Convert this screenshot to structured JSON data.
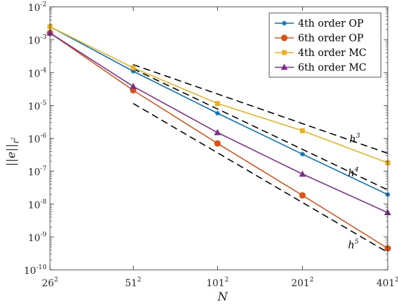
{
  "chart_data": {
    "type": "line",
    "xscale": "log",
    "yscale": "log",
    "xlabel": "N",
    "ylabel": "||e||",
    "ylabel_sub": "ℓ",
    "ylabel_sub_sup": "2",
    "ylim": [
      1e-10,
      0.01
    ],
    "x_categories": [
      26,
      51,
      101,
      201,
      401
    ],
    "x_tick_labels": [
      {
        "base": "26",
        "exp": "2"
      },
      {
        "base": "51",
        "exp": "2"
      },
      {
        "base": "101",
        "exp": "2"
      },
      {
        "base": "201",
        "exp": "2"
      },
      {
        "base": "401",
        "exp": "2"
      }
    ],
    "y_tick_labels": [
      {
        "value": 0.01,
        "base": "10",
        "exp": "-2"
      },
      {
        "value": 0.001,
        "base": "10",
        "exp": "-3"
      },
      {
        "value": 0.0001,
        "base": "10",
        "exp": "-4"
      },
      {
        "value": 1e-05,
        "base": "10",
        "exp": "-5"
      },
      {
        "value": 1e-06,
        "base": "10",
        "exp": "-6"
      },
      {
        "value": 1e-07,
        "base": "10",
        "exp": "-7"
      },
      {
        "value": 1e-08,
        "base": "10",
        "exp": "-8"
      },
      {
        "value": 1e-09,
        "base": "10",
        "exp": "-9"
      },
      {
        "value": 1e-10,
        "base": "10",
        "exp": "-10"
      }
    ],
    "grid": false,
    "legend_position": "top-right",
    "series": [
      {
        "name": "4th order OP",
        "color": "#0072BD",
        "marker": "asterisk",
        "x": [
          26,
          51,
          101,
          201,
          401
        ],
        "values": [
          0.0025,
          0.00011,
          5.8e-06,
          3.3e-07,
          1.95e-08
        ]
      },
      {
        "name": "6th order OP",
        "color": "#D95319",
        "marker": "circle",
        "x": [
          26,
          51,
          101,
          201,
          401
        ],
        "values": [
          0.0016,
          2.9e-05,
          7e-07,
          1.85e-08,
          4.5e-10
        ]
      },
      {
        "name": "4th order MC",
        "color": "#EDB120",
        "marker": "square",
        "x": [
          26,
          51,
          101,
          201,
          401
        ],
        "values": [
          0.0025,
          0.00014,
          1.15e-05,
          1.7e-06,
          1.8e-07
        ]
      },
      {
        "name": "6th order MC",
        "color": "#7E2F8E",
        "marker": "triangle",
        "x": [
          26,
          51,
          101,
          201,
          401
        ],
        "values": [
          0.0016,
          3.8e-05,
          1.5e-06,
          8.2e-08,
          5.5e-09
        ]
      }
    ],
    "reference_lines": [
      {
        "label": "h",
        "exp": "3",
        "color": "#000000",
        "style": "dashed",
        "x": [
          51,
          401
        ],
        "values": [
          0.000175,
          3.5e-07
        ]
      },
      {
        "label": "h",
        "exp": "4",
        "color": "#000000",
        "style": "dashed",
        "x": [
          51,
          401
        ],
        "values": [
          0.00013,
          2.7e-08
        ]
      },
      {
        "label": "h",
        "exp": "5",
        "color": "#000000",
        "style": "dashed",
        "x": [
          51,
          401
        ],
        "values": [
          1.15e-05,
          3.4e-10
        ]
      }
    ]
  }
}
